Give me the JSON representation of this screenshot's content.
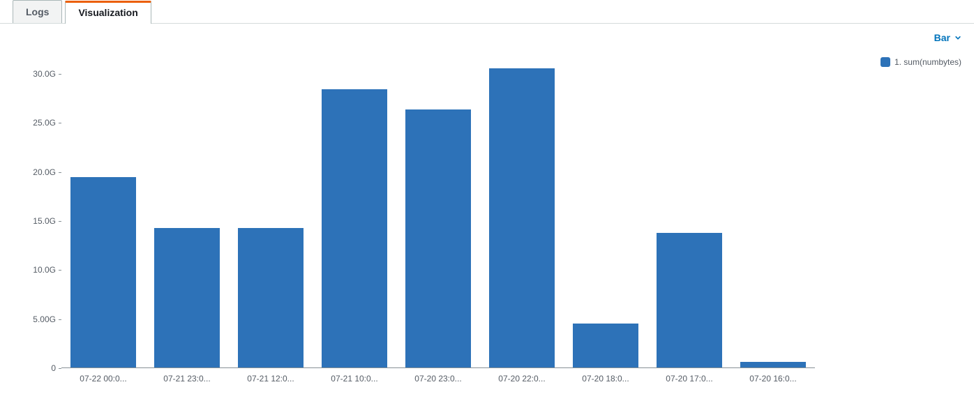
{
  "tabs": {
    "logs_label": "Logs",
    "visualization_label": "Visualization",
    "active": "visualization"
  },
  "chart_type_selector": {
    "label": "Bar",
    "color": "#0073bb"
  },
  "legend": {
    "items": [
      {
        "label": "1. sum(numbytes)",
        "color": "#2d72b8"
      }
    ]
  },
  "chart": {
    "type": "bar",
    "bar_fill_color": "#2d72b8",
    "background_color": "#ffffff",
    "axis_color": "#879196",
    "tick_label_color": "#545b64",
    "tick_fontsize": 12,
    "y": {
      "min": 0,
      "max": 32,
      "unit_suffix": "G",
      "ticks": [
        {
          "value": 0,
          "label": "0"
        },
        {
          "value": 5,
          "label": "5.00G"
        },
        {
          "value": 10,
          "label": "10.0G"
        },
        {
          "value": 15,
          "label": "15.0G"
        },
        {
          "value": 20,
          "label": "20.0G"
        },
        {
          "value": 25,
          "label": "25.0G"
        },
        {
          "value": 30,
          "label": "30.0G"
        }
      ]
    },
    "bar_width_ratio": 0.78,
    "series": {
      "categories": [
        "07-22 00:0...",
        "07-21 23:0...",
        "07-21 12:0...",
        "07-21 10:0...",
        "07-20 23:0...",
        "07-20 22:0...",
        "07-20 18:0...",
        "07-20 17:0...",
        "07-20 16:0..."
      ],
      "values": [
        19.4,
        14.2,
        14.2,
        28.4,
        26.3,
        30.5,
        4.5,
        13.7,
        0.6
      ]
    }
  }
}
